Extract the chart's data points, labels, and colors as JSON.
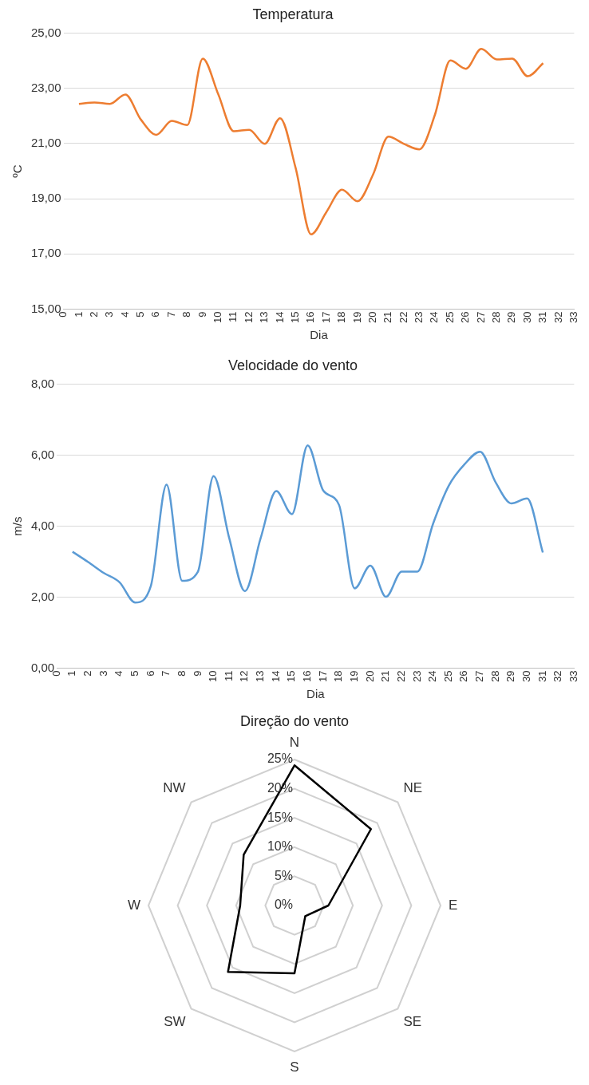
{
  "chart_data": [
    {
      "type": "line",
      "title": "Temperatura",
      "xlabel": "Dia",
      "ylabel": "ºC",
      "grid": "y",
      "marker": "none",
      "x": [
        1,
        2,
        3,
        4,
        5,
        6,
        7,
        8,
        9,
        10,
        11,
        12,
        13,
        14,
        15,
        16,
        17,
        18,
        19,
        20,
        21,
        22,
        23,
        24,
        25,
        26,
        27,
        28,
        29,
        30,
        31
      ],
      "xlim": [
        0,
        33
      ],
      "xticks": [
        0,
        1,
        2,
        3,
        4,
        5,
        6,
        7,
        8,
        9,
        10,
        11,
        12,
        13,
        14,
        15,
        16,
        17,
        18,
        19,
        20,
        21,
        22,
        23,
        24,
        25,
        26,
        27,
        28,
        29,
        30,
        31,
        32,
        33
      ],
      "ylim": [
        15,
        25
      ],
      "yticks": [
        {
          "value": 15,
          "label": "15,00"
        },
        {
          "value": 17,
          "label": "17,00"
        },
        {
          "value": 19,
          "label": "19,00"
        },
        {
          "value": 21,
          "label": "21,00"
        },
        {
          "value": 23,
          "label": "23,00"
        },
        {
          "value": 25,
          "label": "25,00"
        }
      ],
      "series": [
        {
          "color": "#ed7d31",
          "values": [
            22.44,
            22.49,
            22.44,
            22.78,
            21.87,
            21.32,
            21.82,
            21.67,
            24.08,
            22.79,
            21.45,
            21.5,
            20.99,
            21.92,
            20.12,
            17.71,
            18.53,
            19.33,
            18.91,
            19.87,
            21.25,
            20.99,
            20.79,
            22.04,
            24.01,
            23.71,
            24.43,
            24.05,
            24.08,
            23.44,
            23.91
          ]
        }
      ]
    },
    {
      "type": "line",
      "title": "Velocidade do vento",
      "xlabel": "Dia",
      "ylabel": "m/s",
      "grid": "y",
      "marker": "none",
      "x": [
        1,
        2,
        3,
        4,
        5,
        6,
        7,
        8,
        9,
        10,
        11,
        12,
        13,
        14,
        15,
        16,
        17,
        18,
        19,
        20,
        21,
        22,
        23,
        24,
        25,
        26,
        27,
        28,
        29,
        30,
        31
      ],
      "xlim": [
        0,
        33
      ],
      "xticks": [
        0,
        1,
        2,
        3,
        4,
        5,
        6,
        7,
        8,
        9,
        10,
        11,
        12,
        13,
        14,
        15,
        16,
        17,
        18,
        19,
        20,
        21,
        22,
        23,
        24,
        25,
        26,
        27,
        28,
        29,
        30,
        31,
        32,
        33
      ],
      "ylim": [
        0,
        8
      ],
      "yticks": [
        {
          "value": 0,
          "label": "0,00"
        },
        {
          "value": 2,
          "label": "2,00"
        },
        {
          "value": 4,
          "label": "4,00"
        },
        {
          "value": 6,
          "label": "6,00"
        },
        {
          "value": 8,
          "label": "8,00"
        }
      ],
      "series": [
        {
          "color": "#5b9bd5",
          "values": [
            3.28,
            2.99,
            2.68,
            2.42,
            1.85,
            2.32,
            5.17,
            2.46,
            2.72,
            5.41,
            3.66,
            2.17,
            3.66,
            4.99,
            4.34,
            6.28,
            5.0,
            4.6,
            2.25,
            2.89,
            2.01,
            2.72,
            2.72,
            4.07,
            5.14,
            5.74,
            6.1,
            5.23,
            4.64,
            4.78,
            3.26
          ]
        }
      ]
    },
    {
      "type": "radar",
      "title": "Direção do vento",
      "grid": true,
      "marker": "none",
      "categories": [
        "N",
        "NE",
        "E",
        "SE",
        "S",
        "SW",
        "W",
        "NW"
      ],
      "ylim": [
        0,
        25
      ],
      "yticks": [
        {
          "value": 0,
          "label": "0%"
        },
        {
          "value": 5,
          "label": "5%"
        },
        {
          "value": 10,
          "label": "10%"
        },
        {
          "value": 15,
          "label": "15%"
        },
        {
          "value": 20,
          "label": "20%"
        },
        {
          "value": 25,
          "label": "25%"
        }
      ],
      "series": [
        {
          "color": "#000000",
          "values": [
            24,
            18.5,
            5.8,
            2.6,
            11.6,
            16.1,
            9.3,
            12.3
          ]
        }
      ]
    }
  ]
}
